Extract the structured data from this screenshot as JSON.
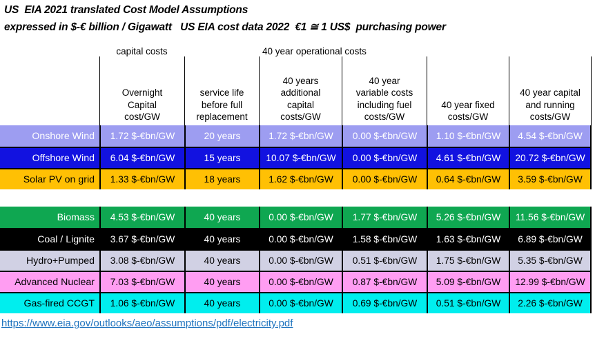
{
  "title": "US  EIA 2021 translated Cost Model Assumptions",
  "subtitle": "expressed in $-€ billion / Gigawatt   US EIA cost data 2022  €1 ≅ 1 US$  purchasing power",
  "table": {
    "group_headers": {
      "capital": "capital costs",
      "operational": "40 year operational costs"
    },
    "column_headers": {
      "c1": "",
      "c2": "Overnight\nCapital\ncost/GW",
      "c3": "service life\nbefore full\nreplacement",
      "c4": "40 years\nadditional\ncapital\ncosts/GW",
      "c5": "40 year\nvariable costs\nincluding fuel\ncosts/GW",
      "c6": "40 year fixed\ncosts/GW",
      "c7": "40 year capital\nand running\ncosts/GW"
    },
    "groups": [
      {
        "rows": [
          {
            "label": "Onshore Wind",
            "bg": "#9d9df1",
            "fg": "#ffffff",
            "cells": [
              "1.72 $-€bn/GW",
              "20 years",
              "1.72 $-€bn/GW",
              "0.00 $-€bn/GW",
              "1.10 $-€bn/GW",
              "4.54 $-€bn/GW"
            ]
          },
          {
            "label": "Offshore Wind",
            "bg": "#1212e0",
            "fg": "#ffffff",
            "cells": [
              "6.04 $-€bn/GW",
              "15 years",
              "10.07 $-€bn/GW",
              "0.00 $-€bn/GW",
              "4.61 $-€bn/GW",
              "20.72 $-€bn/GW"
            ]
          },
          {
            "label": "Solar PV on grid",
            "bg": "#ffc004",
            "fg": "#000000",
            "cells": [
              "1.33 $-€bn/GW",
              "18 years",
              "1.62 $-€bn/GW",
              "0.00 $-€bn/GW",
              "0.64 $-€bn/GW",
              "3.59 $-€bn/GW"
            ]
          }
        ]
      },
      {
        "rows": [
          {
            "label": "Biomass",
            "bg": "#0fa751",
            "fg": "#ffffff",
            "cells": [
              "4.53 $-€bn/GW",
              "40 years",
              "0.00 $-€bn/GW",
              "1.77 $-€bn/GW",
              "5.26 $-€bn/GW",
              "11.56 $-€bn/GW"
            ]
          },
          {
            "label": "Coal / Lignite",
            "bg": "#000000",
            "fg": "#ffffff",
            "cells": [
              "3.67 $-€bn/GW",
              "40 years",
              "0.00 $-€bn/GW",
              "1.58 $-€bn/GW",
              "1.63 $-€bn/GW",
              "6.89 $-€bn/GW"
            ]
          },
          {
            "label": "Hydro+Pumped",
            "bg": "#d1d1e4",
            "fg": "#000000",
            "cells": [
              "3.08 $-€bn/GW",
              "40 years",
              "0.00 $-€bn/GW",
              "0.51 $-€bn/GW",
              "1.75 $-€bn/GW",
              "5.35 $-€bn/GW"
            ]
          },
          {
            "label": "Advanced Nuclear",
            "bg": "#ff9df2",
            "fg": "#000000",
            "cells": [
              "7.03 $-€bn/GW",
              "40 years",
              "0.00 $-€bn/GW",
              "0.87 $-€bn/GW",
              "5.09 $-€bn/GW",
              "12.99 $-€bn/GW"
            ]
          },
          {
            "label": "Gas-fired CCGT",
            "bg": "#00eeee",
            "fg": "#000000",
            "cells": [
              "1.06 $-€bn/GW",
              "40 years",
              "0.00 $-€bn/GW",
              "0.69 $-€bn/GW",
              "0.51 $-€bn/GW",
              "2.26 $-€bn/GW"
            ]
          }
        ]
      }
    ]
  },
  "footer": {
    "link": "https://www.eia.gov/outlooks/aeo/assumptions/pdf/electricity.pdf",
    "link_color": "#1e73be"
  }
}
